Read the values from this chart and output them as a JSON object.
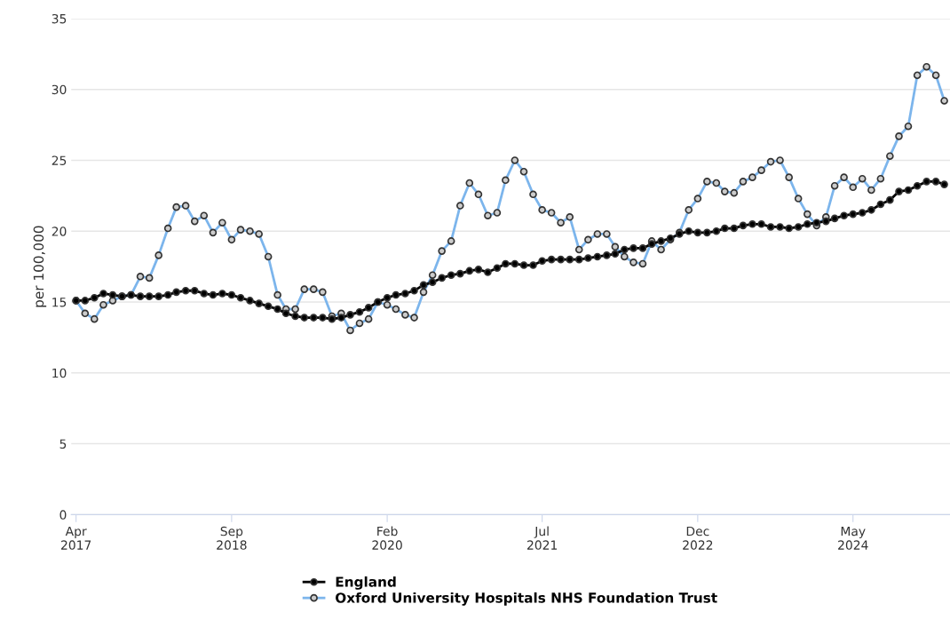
{
  "chart_data": {
    "type": "line",
    "ylabel": "per 100,000",
    "x": [
      "2017-04",
      "2017-05",
      "2017-06",
      "2017-07",
      "2017-08",
      "2017-09",
      "2017-10",
      "2017-11",
      "2017-12",
      "2018-01",
      "2018-02",
      "2018-03",
      "2018-04",
      "2018-05",
      "2018-06",
      "2018-07",
      "2018-08",
      "2018-09",
      "2018-10",
      "2018-11",
      "2018-12",
      "2019-01",
      "2019-02",
      "2019-03",
      "2019-04",
      "2019-05",
      "2019-06",
      "2019-07",
      "2019-08",
      "2019-09",
      "2019-10",
      "2019-11",
      "2019-12",
      "2020-01",
      "2020-02",
      "2020-03",
      "2020-04",
      "2020-05",
      "2020-06",
      "2020-07",
      "2020-08",
      "2020-09",
      "2020-10",
      "2020-11",
      "2020-12",
      "2021-01",
      "2021-02",
      "2021-03",
      "2021-04",
      "2021-05",
      "2021-06",
      "2021-07",
      "2021-08",
      "2021-09",
      "2021-10",
      "2021-11",
      "2021-12",
      "2022-01",
      "2022-02",
      "2022-03",
      "2022-04",
      "2022-05",
      "2022-06",
      "2022-07",
      "2022-08",
      "2022-09",
      "2022-10",
      "2022-11",
      "2022-12",
      "2023-01",
      "2023-02",
      "2023-03",
      "2023-04",
      "2023-05",
      "2023-06",
      "2023-07",
      "2023-08",
      "2023-09",
      "2023-10",
      "2023-11",
      "2023-12",
      "2024-01",
      "2024-02",
      "2024-03",
      "2024-04",
      "2024-05",
      "2024-06",
      "2024-07",
      "2024-08",
      "2024-09",
      "2024-10",
      "2024-11",
      "2024-12",
      "2025-01",
      "2025-02",
      "2025-03"
    ],
    "series": [
      {
        "name": "England",
        "color": "#000000",
        "values": [
          15.1,
          15.1,
          15.3,
          15.6,
          15.5,
          15.4,
          15.5,
          15.4,
          15.4,
          15.4,
          15.5,
          15.7,
          15.8,
          15.8,
          15.6,
          15.5,
          15.6,
          15.5,
          15.3,
          15.1,
          14.9,
          14.7,
          14.5,
          14.2,
          14.0,
          13.9,
          13.9,
          13.9,
          13.8,
          13.9,
          14.1,
          14.3,
          14.6,
          15.0,
          15.3,
          15.5,
          15.6,
          15.8,
          16.2,
          16.4,
          16.7,
          16.9,
          17.0,
          17.2,
          17.3,
          17.1,
          17.4,
          17.7,
          17.7,
          17.6,
          17.6,
          17.9,
          18.0,
          18.0,
          18.0,
          18.0,
          18.1,
          18.2,
          18.3,
          18.4,
          18.7,
          18.8,
          18.8,
          19.1,
          19.3,
          19.5,
          19.8,
          20.0,
          19.9,
          19.9,
          20.0,
          20.2,
          20.2,
          20.4,
          20.5,
          20.5,
          20.3,
          20.3,
          20.2,
          20.3,
          20.5,
          20.6,
          20.7,
          20.9,
          21.1,
          21.2,
          21.3,
          21.5,
          21.9,
          22.2,
          22.8,
          22.9,
          23.2,
          23.5,
          23.5,
          23.3
        ]
      },
      {
        "name": "Oxford University Hospitals NHS Foundation Trust",
        "color": "#7cb5ec",
        "values": [
          15.1,
          14.2,
          13.8,
          14.8,
          15.1,
          15.4,
          15.5,
          16.8,
          16.7,
          18.3,
          20.2,
          21.7,
          21.8,
          20.7,
          21.1,
          19.9,
          20.6,
          19.4,
          20.1,
          20.0,
          19.8,
          18.2,
          15.5,
          14.5,
          14.5,
          15.9,
          15.9,
          15.7,
          14.0,
          14.2,
          13.0,
          13.5,
          13.8,
          15.0,
          14.8,
          14.5,
          14.1,
          13.9,
          15.7,
          16.9,
          18.6,
          19.3,
          21.8,
          23.4,
          22.6,
          21.1,
          21.3,
          23.6,
          25.0,
          24.2,
          22.6,
          21.5,
          21.3,
          20.6,
          21.0,
          18.7,
          19.4,
          19.8,
          19.8,
          18.9,
          18.2,
          17.8,
          17.7,
          19.3,
          18.7,
          19.4,
          19.9,
          21.5,
          22.3,
          23.5,
          23.4,
          22.8,
          22.7,
          23.5,
          23.8,
          24.3,
          24.9,
          25.0,
          23.8,
          22.3,
          21.2,
          20.4,
          21.0,
          23.2,
          23.8,
          23.1,
          23.7,
          22.9,
          23.7,
          25.3,
          26.7,
          27.4,
          31.0,
          31.6,
          31.0,
          29.2
        ]
      }
    ],
    "xlim": [
      "2017-03-16",
      "2025-03-20"
    ],
    "xticks": [
      {
        "value": "2017-04",
        "label": "Apr\n2017"
      },
      {
        "value": "2018-09",
        "label": "Sep\n2018"
      },
      {
        "value": "2020-02",
        "label": "Feb\n2020"
      },
      {
        "value": "2021-07",
        "label": "Jul\n2021"
      },
      {
        "value": "2022-12",
        "label": "Dec\n2022"
      },
      {
        "value": "2024-05",
        "label": "May\n2024"
      }
    ],
    "ylim": [
      0,
      35
    ],
    "yticks": [
      0,
      5,
      10,
      15,
      20,
      25,
      30,
      35
    ],
    "grid": "y",
    "legend": "bottom",
    "marker": "circle",
    "line_style": "solid"
  }
}
